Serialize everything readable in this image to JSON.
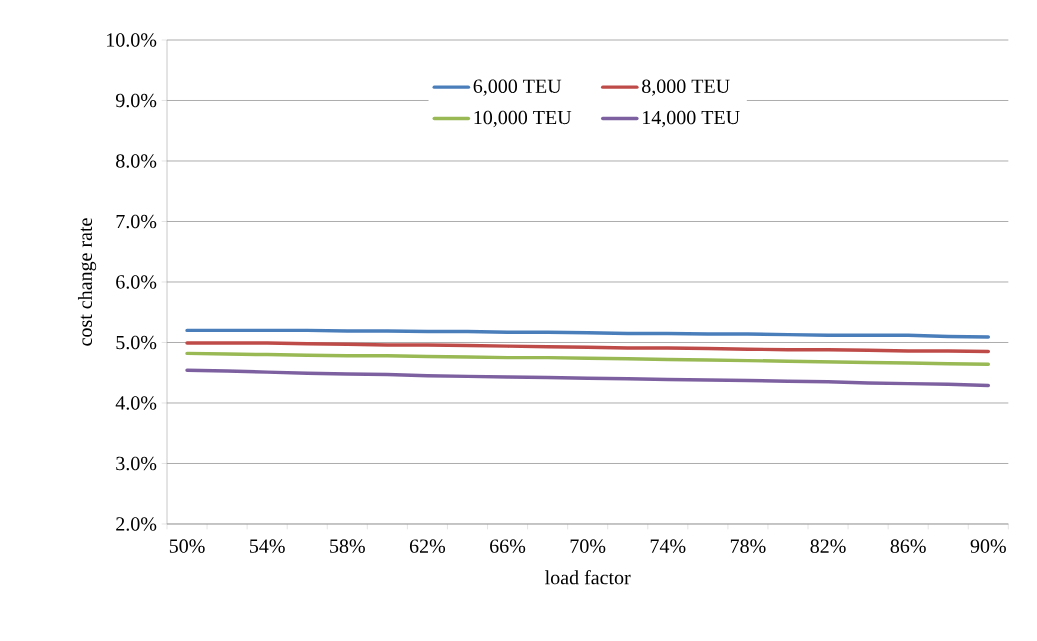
{
  "chart_data": {
    "type": "line",
    "xlabel": "load factor",
    "ylabel": "cost change rate",
    "categories": [
      "50%",
      null,
      "54%",
      null,
      "58%",
      null,
      "62%",
      null,
      "66%",
      null,
      "70%",
      null,
      "74%",
      null,
      "78%",
      null,
      "82%",
      null,
      "86%",
      null,
      "90%"
    ],
    "series": [
      {
        "name": "6,000 TEU",
        "color": "#4a7ebb",
        "values": [
          5.2,
          5.2,
          5.2,
          5.2,
          5.19,
          5.19,
          5.18,
          5.18,
          5.17,
          5.17,
          5.16,
          5.15,
          5.15,
          5.14,
          5.14,
          5.13,
          5.12,
          5.12,
          5.12,
          5.1,
          5.09
        ]
      },
      {
        "name": "8,000 TEU",
        "color": "#be4b48",
        "values": [
          4.99,
          4.99,
          4.99,
          4.98,
          4.97,
          4.96,
          4.96,
          4.95,
          4.94,
          4.93,
          4.92,
          4.91,
          4.91,
          4.9,
          4.89,
          4.88,
          4.88,
          4.87,
          4.86,
          4.86,
          4.85
        ]
      },
      {
        "name": "10,000 TEU",
        "color": "#98b954",
        "values": [
          4.82,
          4.81,
          4.8,
          4.79,
          4.78,
          4.78,
          4.77,
          4.76,
          4.75,
          4.75,
          4.74,
          4.73,
          4.72,
          4.71,
          4.7,
          4.69,
          4.68,
          4.67,
          4.66,
          4.65,
          4.64
        ]
      },
      {
        "name": "14,000 TEU",
        "color": "#7d60a0",
        "values": [
          4.54,
          4.53,
          4.51,
          4.49,
          4.48,
          4.47,
          4.45,
          4.44,
          4.43,
          4.42,
          4.41,
          4.4,
          4.39,
          4.38,
          4.37,
          4.36,
          4.35,
          4.33,
          4.32,
          4.31,
          4.29
        ]
      }
    ],
    "ylim": [
      2,
      10
    ],
    "yticks": [
      {
        "value": 2,
        "label": "2.0%"
      },
      {
        "value": 3,
        "label": "3.0%"
      },
      {
        "value": 4,
        "label": "4.0%"
      },
      {
        "value": 5,
        "label": "5.0%"
      },
      {
        "value": 6,
        "label": "6.0%"
      },
      {
        "value": 7,
        "label": "7.0%"
      },
      {
        "value": 8,
        "label": "8.0%"
      },
      {
        "value": 9,
        "label": "9.0%"
      },
      {
        "value": 10,
        "label": "10.0%"
      }
    ],
    "grid": "y",
    "legend": "top",
    "marker": "none",
    "line_style": "solid"
  }
}
